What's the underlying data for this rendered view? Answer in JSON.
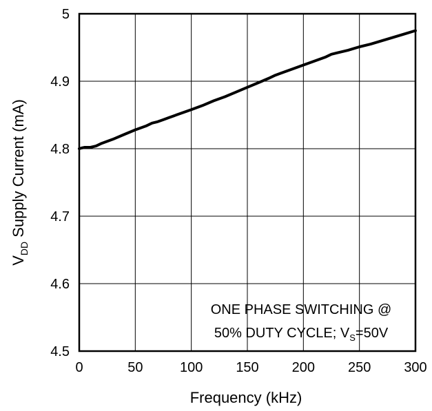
{
  "chart_data": {
    "type": "line",
    "xlabel": "Frequency (kHz)",
    "ylabel": {
      "main": "V",
      "sub": "DD",
      "rest": " Supply Current (mA)"
    },
    "xlim": [
      0,
      300
    ],
    "ylim": [
      4.5,
      5
    ],
    "xticks": [
      0,
      50,
      100,
      150,
      200,
      250,
      300
    ],
    "yticks": [
      4.5,
      4.6,
      4.7,
      4.8,
      4.9,
      5
    ],
    "ytick_labels": [
      "4.5",
      "4.6",
      "4.7",
      "4.8",
      "4.9",
      "5"
    ],
    "grid": true,
    "annotation": {
      "line1": "ONE PHASE SWITCHING @",
      "line2_pre": "50% DUTY CYCLE; V",
      "line2_sub": "S",
      "line2_post": "=50V"
    },
    "series": [
      {
        "x": [
          0,
          2,
          5,
          10,
          15,
          20,
          30,
          40,
          50,
          60,
          65,
          70,
          75,
          80,
          90,
          100,
          110,
          120,
          130,
          140,
          150,
          160,
          170,
          175,
          180,
          190,
          200,
          210,
          220,
          225,
          230,
          240,
          250,
          260,
          270,
          280,
          290,
          300
        ],
        "y": [
          4.8,
          4.801,
          4.802,
          4.802,
          4.804,
          4.808,
          4.814,
          4.821,
          4.828,
          4.834,
          4.838,
          4.84,
          4.843,
          4.846,
          4.852,
          4.858,
          4.864,
          4.871,
          4.877,
          4.884,
          4.891,
          4.898,
          4.905,
          4.909,
          4.912,
          4.918,
          4.924,
          4.93,
          4.936,
          4.94,
          4.942,
          4.946,
          4.951,
          4.955,
          4.96,
          4.965,
          4.97,
          4.975
        ]
      }
    ]
  }
}
